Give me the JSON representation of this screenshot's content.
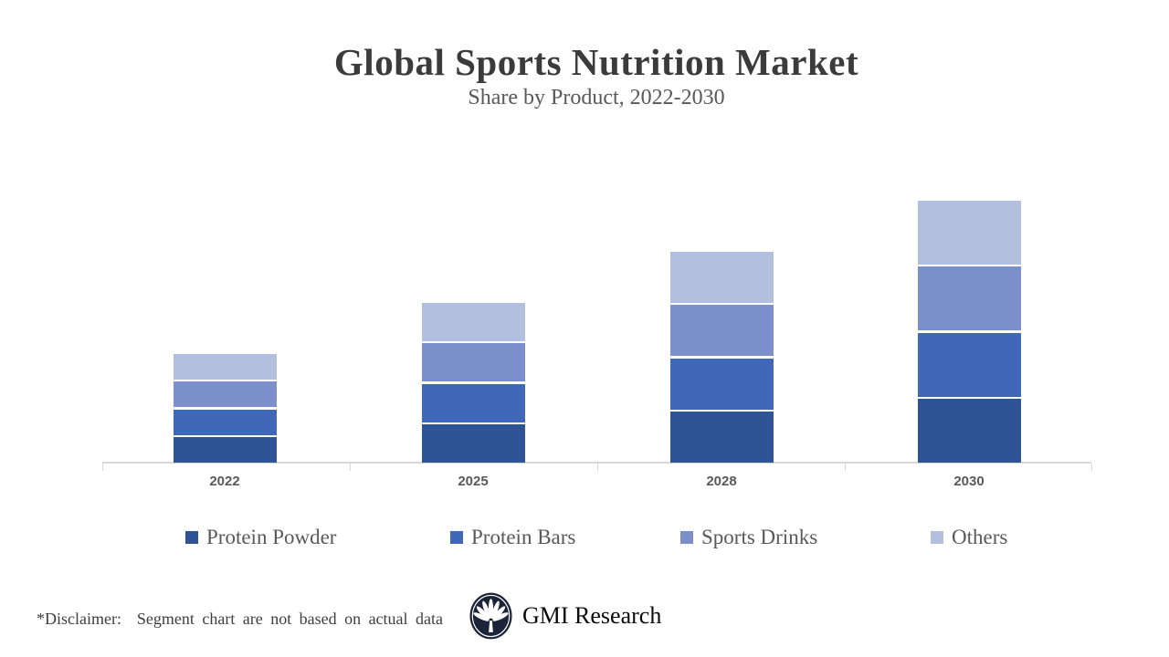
{
  "header": {
    "title": "Global Sports Nutrition Market",
    "subtitle": "Share by Product, 2022-2030"
  },
  "chart_data": {
    "type": "bar",
    "stacked": true,
    "title": "Global Sports Nutrition Market",
    "subtitle": "Share by Product, 2022-2030",
    "categories": [
      "2022",
      "2025",
      "2028",
      "2030"
    ],
    "series": [
      {
        "name": "Protein Powder",
        "color": "#2F5496",
        "values": [
          2,
          3,
          4,
          5
        ]
      },
      {
        "name": "Protein Bars",
        "color": "#4068B8",
        "values": [
          2,
          3,
          4,
          5
        ]
      },
      {
        "name": "Sports Drinks",
        "color": "#7B90CB",
        "values": [
          2,
          3,
          4,
          5
        ]
      },
      {
        "name": "Others",
        "color": "#B3BFDF",
        "values": [
          2,
          3,
          4,
          5
        ]
      }
    ],
    "xlabel": "",
    "ylabel": "",
    "y_axis_visible": false,
    "grid": false,
    "legend_position": "bottom",
    "segment_separator_color": "#FFFFFF",
    "axis_line_color": "#D9D9D9"
  },
  "footer": {
    "disclaimer": "*Disclaimer:  Segment chart are not based on actual data",
    "brand": "GMI Research"
  },
  "colors": {
    "title_text": "#3B3B3B",
    "subtitle_text": "#595959",
    "category_label_text": "#595959",
    "legend_text": "#595959",
    "disclaimer_text": "#3F3F3F",
    "axis_line": "#D9D9D9",
    "logo_navy": "#1B2438"
  }
}
